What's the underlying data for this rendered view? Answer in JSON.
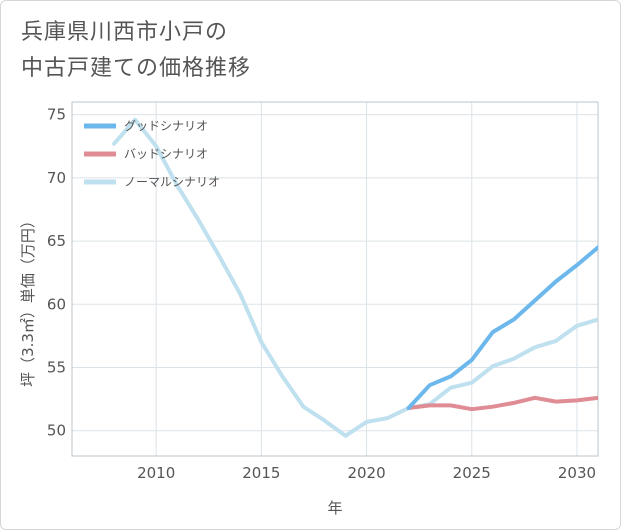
{
  "header": {
    "title_line1": "兵庫県川西市小戸の",
    "title_line2": "中古戸建ての価格推移"
  },
  "chart_data": {
    "type": "line",
    "title": "兵庫県川西市小戸の中古戸建ての価格推移",
    "xlabel": "年",
    "ylabel": "坪（3.3㎡）単価（万円）",
    "xlim": [
      2006,
      2031
    ],
    "ylim": [
      48,
      76
    ],
    "x_ticks": [
      2010,
      2015,
      2020,
      2025,
      2030
    ],
    "y_ticks": [
      50,
      55,
      60,
      65,
      70,
      75
    ],
    "grid": true,
    "legend_position": "top-left",
    "series": [
      {
        "name": "グッドシナリオ",
        "color": "#6cb8ec",
        "x": [
          2022,
          2023,
          2024,
          2025,
          2026,
          2027,
          2028,
          2029,
          2030,
          2031
        ],
        "values": [
          51.8,
          53.6,
          54.3,
          55.6,
          57.8,
          58.8,
          60.3,
          61.8,
          63.1,
          64.5
        ]
      },
      {
        "name": "バッドシナリオ",
        "color": "#e08c94",
        "x": [
          2022,
          2023,
          2024,
          2025,
          2026,
          2027,
          2028,
          2029,
          2030,
          2031
        ],
        "values": [
          51.8,
          52.0,
          52.0,
          51.7,
          51.9,
          52.2,
          52.6,
          52.3,
          52.4,
          52.6
        ]
      },
      {
        "name": "ノーマルシナリオ",
        "color": "#bfe0ee",
        "x": [
          2008,
          2009,
          2010,
          2011,
          2012,
          2013,
          2014,
          2015,
          2016,
          2017,
          2018,
          2019,
          2020,
          2021,
          2022,
          2023,
          2024,
          2025,
          2026,
          2027,
          2028,
          2029,
          2030,
          2031
        ],
        "values": [
          72.7,
          74.6,
          72.5,
          69.4,
          66.7,
          63.8,
          60.8,
          57.0,
          54.3,
          51.9,
          50.8,
          49.6,
          50.7,
          51.0,
          51.8,
          52.1,
          53.4,
          53.8,
          55.1,
          55.7,
          56.6,
          57.1,
          58.3,
          58.8
        ]
      }
    ]
  }
}
